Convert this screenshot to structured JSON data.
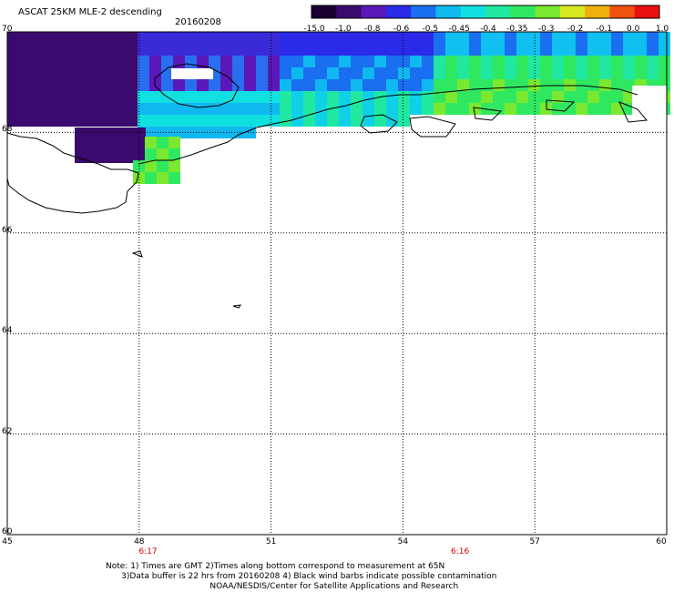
{
  "header": {
    "title": "ASCAT 25KM MLE-2 descending",
    "date": "20160208"
  },
  "colorbar": {
    "labels": [
      "-15.0",
      "-1.0",
      "-0.8",
      "-0.6",
      "-0.5",
      "-0.45",
      "-0.4",
      "-0.35",
      "-0.3",
      "-0.2",
      "-0.1",
      "0.0",
      "1.0"
    ],
    "colors": [
      "#1a0033",
      "#3a0a6e",
      "#5a18b8",
      "#2a2ae8",
      "#1a6ef0",
      "#10b8f0",
      "#10e0e0",
      "#20e8a0",
      "#30e860",
      "#7ae830",
      "#d8e820",
      "#f0b010",
      "#f05010",
      "#e81010"
    ]
  },
  "map": {
    "lat_labels": [
      "70",
      "68",
      "66",
      "64",
      "62",
      "60"
    ],
    "lon_labels": [
      "45",
      "48",
      "51",
      "54",
      "57",
      "60"
    ],
    "lat_range": [
      60,
      70
    ],
    "lon_range": [
      45,
      60
    ],
    "time_labels": [
      {
        "text": "6:17",
        "lon": 48.2
      },
      {
        "text": "6:16",
        "lon": 55.3
      }
    ]
  },
  "footer": {
    "note1": "Note: 1) Times are GMT 2)Times along bottom correspond to measurement at 65N",
    "note2": "      3)Data buffer is 22 hrs from 20160208 4) Black wind barbs indicate possible contamination",
    "note3": "                                        NOAA/NESDIS/Center for Satellite Applications and Research"
  }
}
